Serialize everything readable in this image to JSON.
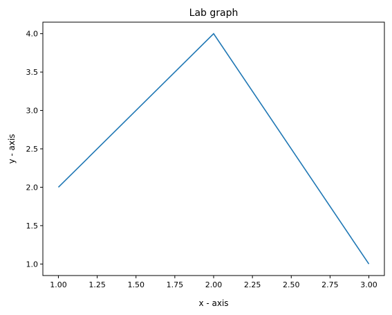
{
  "chart_data": {
    "type": "line",
    "title": "Lab graph",
    "xlabel": "x - axis",
    "ylabel": "y - axis",
    "x": [
      1,
      2,
      3
    ],
    "series": [
      {
        "values": [
          2,
          4,
          1
        ],
        "color": "#1f77b4"
      }
    ],
    "xlim": [
      0.9,
      3.1
    ],
    "ylim": [
      0.85,
      4.15
    ],
    "xticks": [
      "1.00",
      "1.25",
      "1.50",
      "1.75",
      "2.00",
      "2.25",
      "2.50",
      "2.75",
      "3.00"
    ],
    "yticks": [
      "1.0",
      "1.5",
      "2.0",
      "2.5",
      "3.0",
      "3.5",
      "4.0"
    ],
    "grid": false,
    "legend": "none"
  }
}
